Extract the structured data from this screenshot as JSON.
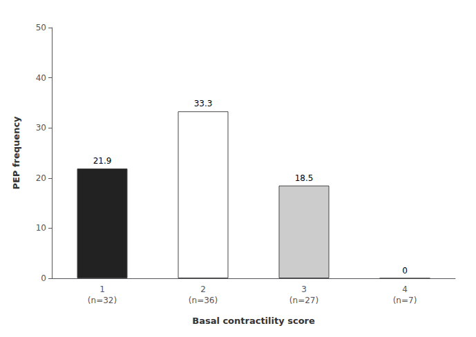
{
  "chart_data": {
    "type": "bar",
    "categories": [
      "1\n(n=32)",
      "2\n(n=36)",
      "3\n(n=27)",
      "4\n(n=7)"
    ],
    "values": [
      21.9,
      33.3,
      18.5,
      0
    ],
    "colors": [
      "#222222",
      "#ffffff",
      "#cccccc",
      "#ffffff"
    ],
    "xlabel": "Basal contractility score",
    "ylabel": "PEP frequency",
    "ylim": [
      0,
      50
    ],
    "yticks": [
      0,
      10,
      20,
      30,
      40,
      50
    ],
    "grid": false,
    "data_labels": true
  }
}
